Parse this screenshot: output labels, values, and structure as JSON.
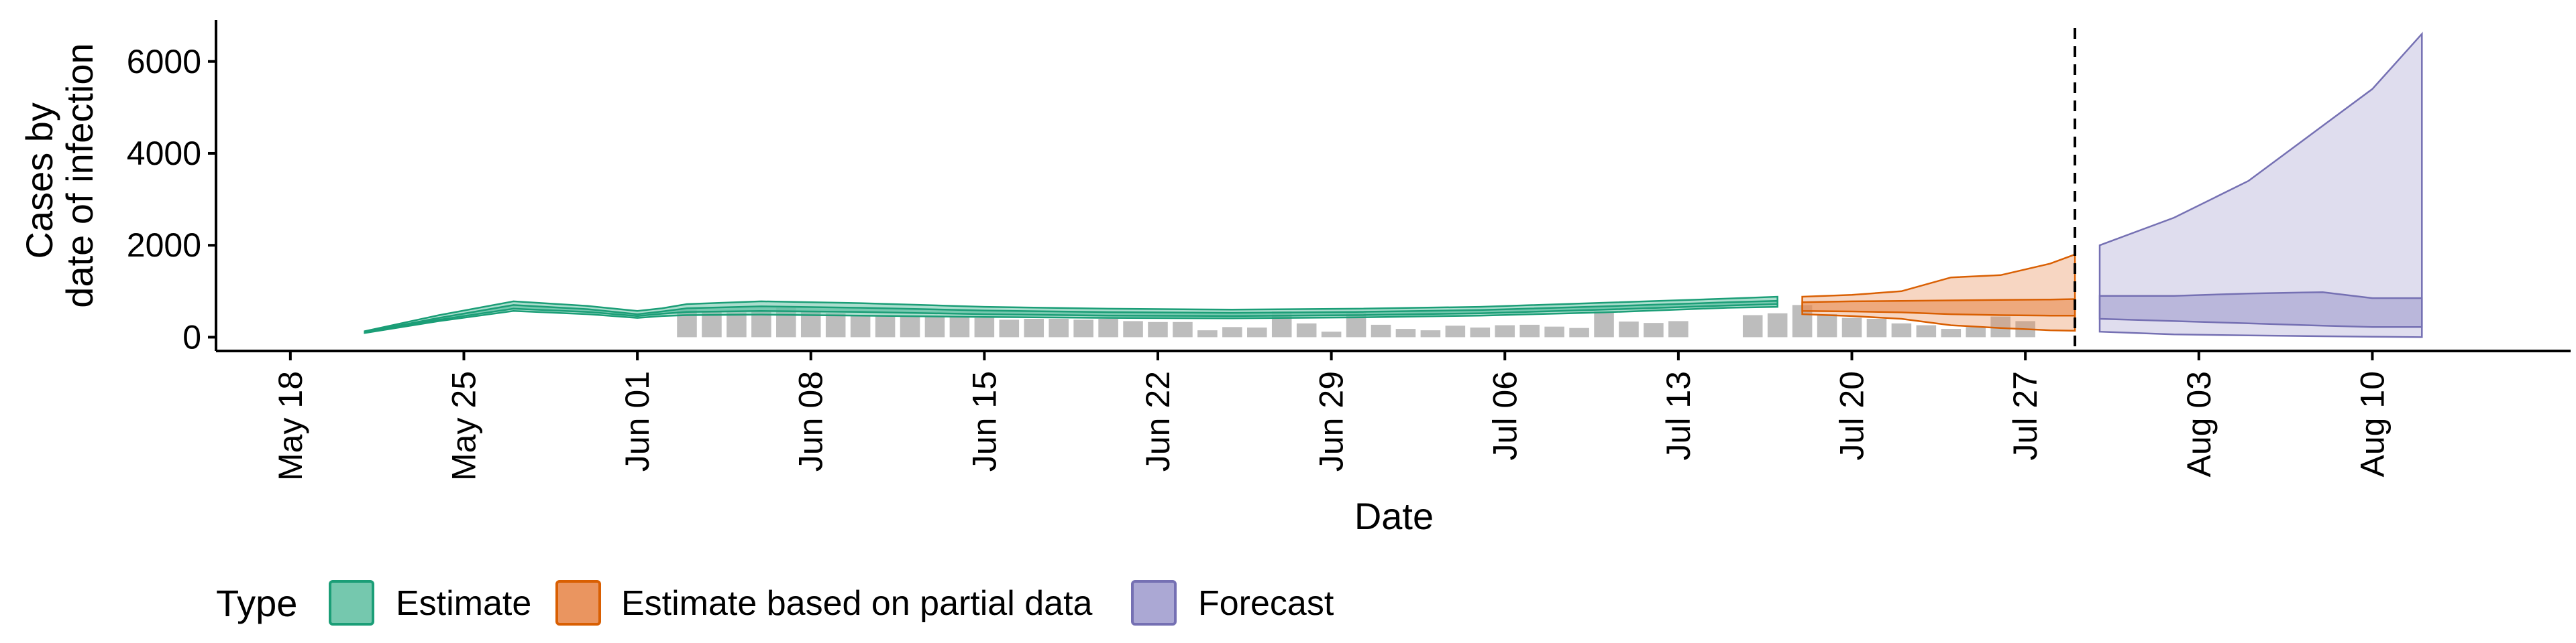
{
  "colors": {
    "estimate_fill": "#66C2A5",
    "estimate_line": "#1B9E77",
    "partial_fill": "#E88A4F",
    "partial_line": "#D95F02",
    "forecast_fill": "#A29FCF",
    "forecast_line": "#7570B3",
    "bars": "#BDBDBD",
    "axis": "#000000"
  },
  "chart_data": {
    "type": "area",
    "xlabel": "Date",
    "ylabel_lines": [
      "Cases by",
      "date of infection"
    ],
    "x_axis": {
      "type": "date",
      "range": [
        "2020-05-15",
        "2020-08-18"
      ],
      "ticks": [
        {
          "date": "2020-05-18",
          "label": "May 18"
        },
        {
          "date": "2020-05-25",
          "label": "May 25"
        },
        {
          "date": "2020-06-01",
          "label": "Jun 01"
        },
        {
          "date": "2020-06-08",
          "label": "Jun 08"
        },
        {
          "date": "2020-06-15",
          "label": "Jun 15"
        },
        {
          "date": "2020-06-22",
          "label": "Jun 22"
        },
        {
          "date": "2020-06-29",
          "label": "Jun 29"
        },
        {
          "date": "2020-07-06",
          "label": "Jul 06"
        },
        {
          "date": "2020-07-13",
          "label": "Jul 13"
        },
        {
          "date": "2020-07-20",
          "label": "Jul 20"
        },
        {
          "date": "2020-07-27",
          "label": "Jul 27"
        },
        {
          "date": "2020-08-03",
          "label": "Aug 03"
        },
        {
          "date": "2020-08-10",
          "label": "Aug 10"
        }
      ]
    },
    "y_axis": {
      "range": [
        -300,
        6900
      ],
      "ticks": [
        0,
        2000,
        4000,
        6000
      ]
    },
    "vline_date": "2020-07-29",
    "reported_cases": {
      "start_date": "2020-06-03",
      "values": [
        600,
        560,
        540,
        560,
        640,
        560,
        520,
        470,
        470,
        450,
        460,
        440,
        420,
        380,
        400,
        400,
        380,
        400,
        350,
        330,
        330,
        150,
        220,
        210,
        560,
        300,
        120,
        540,
        270,
        180,
        150,
        250,
        210,
        260,
        270,
        230,
        200,
        560,
        340,
        310,
        350,
        0,
        0,
        480,
        520,
        700,
        500,
        420,
        400,
        300,
        260,
        180,
        220,
        450,
        350
      ]
    },
    "series": [
      {
        "name": "Estimate",
        "dates": [
          "2020-05-21",
          "2020-05-24",
          "2020-05-27",
          "2020-05-30",
          "2020-06-01",
          "2020-06-02",
          "2020-06-03",
          "2020-06-06",
          "2020-06-10",
          "2020-06-15",
          "2020-06-20",
          "2020-06-25",
          "2020-06-30",
          "2020-07-05",
          "2020-07-10",
          "2020-07-15",
          "2020-07-17"
        ],
        "outer_upper": [
          130,
          480,
          780,
          680,
          570,
          630,
          720,
          780,
          740,
          660,
          620,
          600,
          620,
          660,
          750,
          840,
          880
        ],
        "outer_lower": [
          90,
          350,
          570,
          500,
          420,
          460,
          480,
          490,
          470,
          440,
          420,
          410,
          430,
          470,
          540,
          640,
          660
        ],
        "inner_upper": [
          115,
          420,
          700,
          610,
          500,
          560,
          630,
          670,
          640,
          580,
          545,
          530,
          550,
          590,
          670,
          760,
          790
        ],
        "inner_lower": [
          100,
          380,
          620,
          550,
          460,
          510,
          550,
          570,
          550,
          500,
          470,
          460,
          480,
          520,
          600,
          690,
          720
        ]
      },
      {
        "name": "Estimate based on partial data",
        "dates": [
          "2020-07-18",
          "2020-07-20",
          "2020-07-22",
          "2020-07-24",
          "2020-07-26",
          "2020-07-28",
          "2020-07-29"
        ],
        "outer_upper": [
          880,
          920,
          1000,
          1300,
          1350,
          1600,
          1800
        ],
        "outer_lower": [
          500,
          460,
          400,
          260,
          200,
          150,
          140
        ],
        "inner_upper": [
          760,
          780,
          790,
          800,
          810,
          820,
          830
        ],
        "inner_lower": [
          570,
          560,
          540,
          500,
          480,
          470,
          470
        ]
      },
      {
        "name": "Forecast",
        "dates": [
          "2020-07-30",
          "2020-08-02",
          "2020-08-05",
          "2020-08-08",
          "2020-08-10",
          "2020-08-12"
        ],
        "outer_upper": [
          2000,
          2600,
          3400,
          4600,
          5400,
          6600
        ],
        "outer_lower": [
          120,
          60,
          40,
          20,
          10,
          0
        ],
        "inner_upper": [
          900,
          900,
          950,
          980,
          850,
          850
        ],
        "inner_lower": [
          400,
          350,
          300,
          250,
          220,
          220
        ]
      }
    ],
    "legend": {
      "title": "Type",
      "position": "bottom",
      "entries": [
        "Estimate",
        "Estimate based on partial data",
        "Forecast"
      ]
    }
  }
}
